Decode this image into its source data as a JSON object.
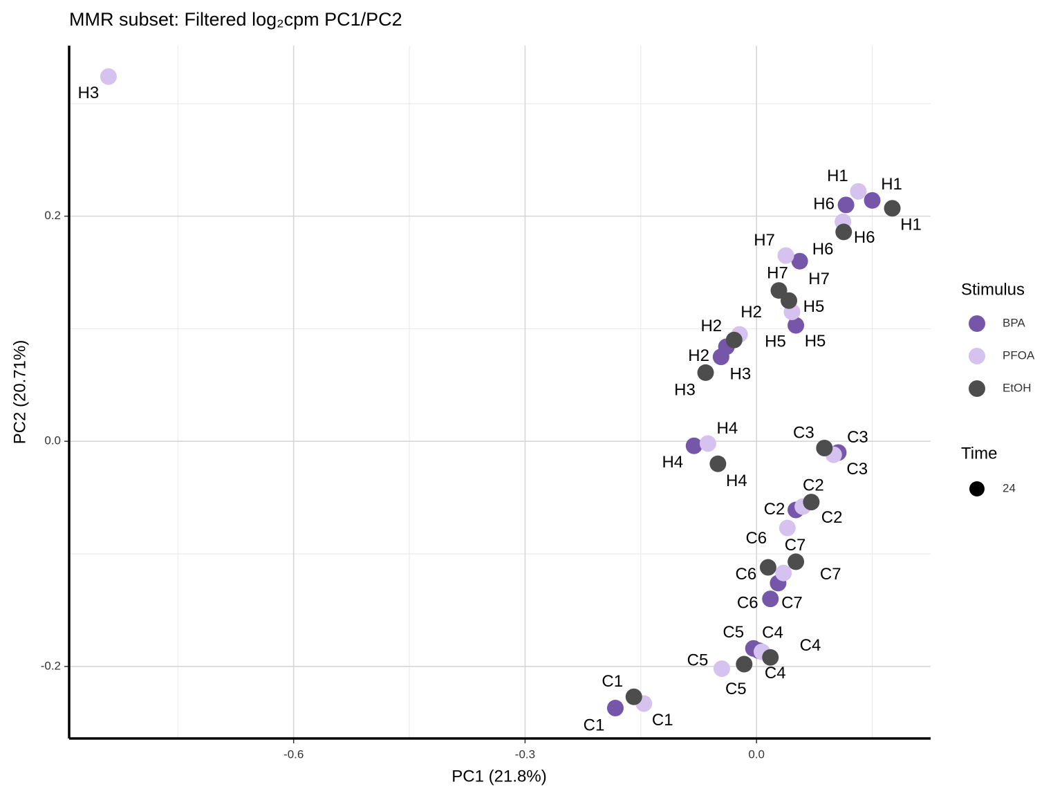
{
  "chart_data": {
    "type": "scatter",
    "title": "MMR subset: Filtered log₂cpm PC1/PC2",
    "x_label": "PC1 (21.8%)",
    "y_label": "PC2 (20.71%)",
    "xlim": [
      -0.891,
      0.2257
    ],
    "ylim": [
      -0.264,
      0.3515
    ],
    "xticks": [
      -0.6,
      -0.3,
      {
        "value": 0,
        "label": "0.0"
      }
    ],
    "yticks": [
      -0.2,
      {
        "value": 0,
        "label": "0.0"
      },
      0.2
    ],
    "x_minor_ticks": [
      -0.75,
      -0.45,
      -0.15,
      0.15
    ],
    "y_minor_ticks": [
      -0.1,
      0.1,
      0.3
    ],
    "grid": true,
    "legend_title": "Stimulus",
    "size_legend": {
      "title": "Time",
      "values": [
        24
      ]
    },
    "series": [
      {
        "name": "BPA",
        "color": "#7656a8",
        "x": [
          0.15,
          0.116,
          0.056,
          0.051,
          -0.039,
          -0.046,
          -0.081,
          0.106,
          0.051,
          0.028,
          0.018,
          -0.004,
          0.003,
          -0.183
        ],
        "values": [
          0.214,
          0.21,
          0.16,
          0.103,
          0.084,
          0.075,
          -0.004,
          -0.01,
          -0.061,
          -0.126,
          -0.14,
          -0.184,
          -0.186,
          -0.237
        ],
        "labels": [
          "H1",
          "H6",
          "H7",
          "H5",
          "H2",
          "H3",
          "H4",
          "C3",
          "C2",
          "C7",
          "C6",
          "C5",
          "C4",
          "C1"
        ]
      },
      {
        "name": "PFOA",
        "color": "#d5c2ef",
        "x": [
          -0.84,
          0.132,
          0.112,
          0.038,
          0.046,
          -0.022,
          -0.063,
          0.1,
          0.06,
          0.04,
          0.035,
          0.007,
          -0.045,
          -0.146
        ],
        "values": [
          0.324,
          0.222,
          0.195,
          0.165,
          0.115,
          0.095,
          -0.002,
          -0.012,
          -0.058,
          -0.077,
          -0.117,
          -0.187,
          -0.202,
          -0.233
        ],
        "labels": [
          "H3",
          "H1",
          "H6",
          "H7",
          "H5",
          "H2",
          "H4",
          "C3",
          "C2",
          "C6",
          "C7",
          "C4",
          "C5",
          "C1"
        ]
      },
      {
        "name": "EtOH",
        "color": "#4d4d4d",
        "x": [
          0.176,
          0.113,
          0.029,
          0.042,
          -0.029,
          -0.066,
          -0.05,
          0.088,
          0.071,
          0.051,
          0.015,
          0.018,
          -0.016,
          -0.159
        ],
        "values": [
          0.207,
          0.186,
          0.134,
          0.125,
          0.09,
          0.061,
          -0.02,
          -0.006,
          -0.054,
          -0.107,
          -0.112,
          -0.192,
          -0.198,
          -0.227
        ],
        "labels": [
          "H1",
          "H6",
          "H7",
          "H5",
          "H2",
          "H3",
          "H4",
          "C3",
          "C2",
          "C7",
          "C6",
          "C4",
          "C5",
          "C1"
        ]
      }
    ]
  }
}
